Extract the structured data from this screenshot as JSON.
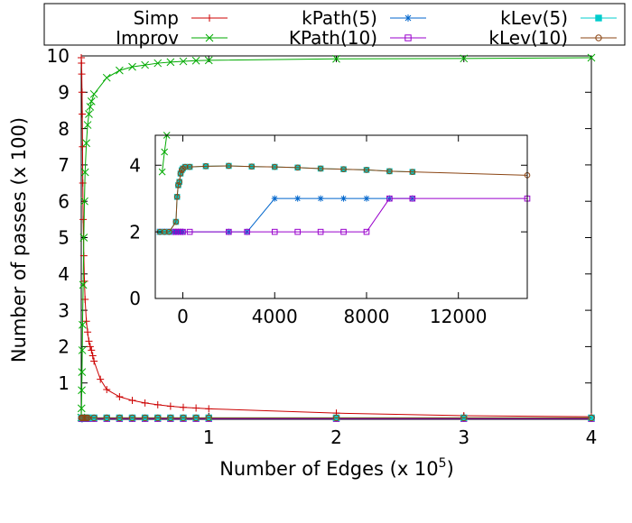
{
  "chart_data": [
    {
      "type": "line",
      "role": "main",
      "xlabel": "Number of Edges (x 10",
      "xlabel_exponent": "5",
      "xlabel_suffix": ")",
      "ylabel": "Number of passes (x 100)",
      "xlim": [
        0,
        4
      ],
      "ylim": [
        0,
        10
      ],
      "x_ticks": [
        {
          "value": 1,
          "label": "1"
        },
        {
          "value": 2,
          "label": "2"
        },
        {
          "value": 3,
          "label": "3"
        },
        {
          "value": 4,
          "label": "4"
        }
      ],
      "y_ticks": [
        {
          "value": 1,
          "label": "1"
        },
        {
          "value": 2,
          "label": "2"
        },
        {
          "value": 3,
          "label": "3"
        },
        {
          "value": 4,
          "label": "4"
        },
        {
          "value": 5,
          "label": "5"
        },
        {
          "value": 6,
          "label": "6"
        },
        {
          "value": 7,
          "label": "7"
        },
        {
          "value": 8,
          "label": "8"
        },
        {
          "value": 9,
          "label": "9"
        },
        {
          "value": 10,
          "label": "10"
        }
      ],
      "grid": false,
      "legend_position": "top (boxed, above plot)",
      "series": [
        {
          "name": "Simp",
          "color": "#cc0000",
          "marker": "plus",
          "x": [
            0.0,
            0.002,
            0.004,
            0.006,
            0.008,
            0.01,
            0.012,
            0.015,
            0.02,
            0.025,
            0.03,
            0.04,
            0.05,
            0.06,
            0.07,
            0.08,
            0.09,
            0.1,
            0.15,
            0.2,
            0.3,
            0.4,
            0.5,
            0.6,
            0.7,
            0.8,
            0.9,
            1.0,
            2.0,
            3.0,
            4.0
          ],
          "y": [
            9.95,
            9.8,
            9.5,
            9.0,
            8.4,
            7.5,
            6.5,
            5.5,
            4.5,
            3.8,
            3.3,
            2.7,
            2.4,
            2.15,
            2.0,
            1.9,
            1.75,
            1.6,
            1.1,
            0.82,
            0.62,
            0.52,
            0.45,
            0.4,
            0.36,
            0.33,
            0.31,
            0.29,
            0.17,
            0.1,
            0.07
          ]
        },
        {
          "name": "Improv",
          "color": "#00aa00",
          "marker": "x",
          "x": [
            0.0,
            0.002,
            0.004,
            0.006,
            0.008,
            0.01,
            0.015,
            0.02,
            0.025,
            0.03,
            0.04,
            0.05,
            0.06,
            0.07,
            0.08,
            0.1,
            0.2,
            0.3,
            0.4,
            0.5,
            0.6,
            0.7,
            0.8,
            0.9,
            1.0,
            2.0,
            3.0,
            4.0
          ],
          "y": [
            0.05,
            0.3,
            0.8,
            1.3,
            1.9,
            2.6,
            3.7,
            5.0,
            6.0,
            6.8,
            7.6,
            8.1,
            8.4,
            8.6,
            8.75,
            8.95,
            9.4,
            9.6,
            9.7,
            9.75,
            9.8,
            9.83,
            9.85,
            9.87,
            9.88,
            9.92,
            9.93,
            9.95
          ]
        },
        {
          "name": "kPath(5)",
          "color": "#0066cc",
          "marker": "asterisk",
          "x": [
            0.002,
            0.005,
            0.01,
            0.02,
            0.03,
            0.04,
            0.05,
            0.1,
            0.2,
            0.3,
            0.4,
            0.5,
            0.6,
            0.7,
            0.8,
            0.9,
            1.0,
            2.0,
            3.0,
            4.0
          ],
          "y": [
            0.02,
            0.02,
            0.02,
            0.03,
            0.03,
            0.03,
            0.03,
            0.03,
            0.03,
            0.03,
            0.03,
            0.03,
            0.03,
            0.03,
            0.03,
            0.03,
            0.03,
            0.03,
            0.03,
            0.03
          ]
        },
        {
          "name": "KPath(10)",
          "color": "#9900cc",
          "marker": "square-open",
          "x": [
            0.002,
            0.005,
            0.01,
            0.02,
            0.03,
            0.04,
            0.05,
            0.1,
            0.2,
            0.3,
            0.4,
            0.5,
            0.6,
            0.7,
            0.8,
            0.9,
            1.0,
            2.0,
            3.0,
            4.0
          ],
          "y": [
            0.02,
            0.02,
            0.02,
            0.02,
            0.02,
            0.02,
            0.02,
            0.02,
            0.02,
            0.02,
            0.02,
            0.02,
            0.02,
            0.02,
            0.02,
            0.02,
            0.02,
            0.02,
            0.02,
            0.02
          ]
        },
        {
          "name": "kLev(5)",
          "color": "#00cccc",
          "marker": "square-filled",
          "x": [
            0.002,
            0.005,
            0.01,
            0.02,
            0.03,
            0.04,
            0.05,
            0.1,
            0.2,
            0.3,
            0.4,
            0.5,
            0.6,
            0.7,
            0.8,
            0.9,
            1.0,
            2.0,
            3.0,
            4.0
          ],
          "y": [
            0.04,
            0.04,
            0.04,
            0.04,
            0.04,
            0.04,
            0.04,
            0.04,
            0.04,
            0.04,
            0.04,
            0.04,
            0.04,
            0.04,
            0.04,
            0.04,
            0.04,
            0.04,
            0.04,
            0.04
          ]
        },
        {
          "name": "kLev(10)",
          "color": "#8b4513",
          "marker": "circle-open",
          "x": [
            0.002,
            0.005,
            0.01,
            0.02,
            0.03,
            0.04,
            0.05,
            0.1,
            0.2,
            0.3,
            0.4,
            0.5,
            0.6,
            0.7,
            0.8,
            0.9,
            1.0,
            2.0,
            3.0,
            4.0
          ],
          "y": [
            0.04,
            0.04,
            0.04,
            0.04,
            0.04,
            0.04,
            0.04,
            0.04,
            0.04,
            0.04,
            0.04,
            0.04,
            0.04,
            0.04,
            0.04,
            0.04,
            0.04,
            0.04,
            0.04,
            0.04
          ]
        }
      ]
    },
    {
      "type": "line",
      "role": "inset",
      "xlabel": "",
      "ylabel": "",
      "xlim": [
        -1200,
        15000
      ],
      "ylim": [
        0,
        4.9
      ],
      "x_ticks": [
        {
          "value": 0,
          "label": "0"
        },
        {
          "value": 4000,
          "label": "4000"
        },
        {
          "value": 8000,
          "label": "8000"
        },
        {
          "value": 12000,
          "label": "12000"
        }
      ],
      "y_ticks": [
        {
          "value": 0,
          "label": "0"
        },
        {
          "value": 2,
          "label": "2"
        },
        {
          "value": 4,
          "label": "4"
        }
      ],
      "grid": false,
      "series": [
        {
          "name": "Simp",
          "color": "#cc0000",
          "marker": "plus",
          "x": [],
          "y": []
        },
        {
          "name": "Improv",
          "color": "#00aa00",
          "marker": "x",
          "x": [
            -900,
            -800,
            -700
          ],
          "y": [
            3.8,
            4.4,
            5.0
          ]
        },
        {
          "name": "kPath(5)",
          "color": "#0066cc",
          "marker": "asterisk",
          "x": [
            -1000,
            -800,
            -600,
            -400,
            -300,
            -200,
            -100,
            0,
            2000,
            2800,
            4000,
            5000,
            6000,
            7000,
            8000,
            9000,
            10000
          ],
          "y": [
            2,
            2,
            2,
            2,
            2,
            2,
            2,
            2,
            2,
            2,
            3,
            3,
            3,
            3,
            3,
            3,
            3
          ]
        },
        {
          "name": "KPath(10)",
          "color": "#9900cc",
          "marker": "square-open",
          "x": [
            -1000,
            -800,
            -600,
            -400,
            -300,
            -200,
            -100,
            0,
            300,
            2000,
            2800,
            4000,
            5000,
            6000,
            7000,
            8000,
            9000,
            10000,
            15000
          ],
          "y": [
            2,
            2,
            2,
            2,
            2,
            2,
            2,
            2,
            2,
            2,
            2,
            2,
            2,
            2,
            2,
            2,
            3,
            3,
            3
          ]
        },
        {
          "name": "kLev(5)",
          "color": "#00cccc",
          "marker": "square-filled",
          "x": [
            -1000,
            -800,
            -600,
            -300,
            -250,
            -200,
            -150,
            -100,
            -50,
            0,
            100,
            300,
            1000,
            2000,
            3000,
            4000,
            5000,
            6000,
            7000,
            8000,
            9000,
            10000
          ],
          "y": [
            2,
            2,
            2,
            2.3,
            3.05,
            3.4,
            3.5,
            3.75,
            3.85,
            3.9,
            3.95,
            3.95,
            3.97,
            3.98,
            3.96,
            3.95,
            3.93,
            3.9,
            3.88,
            3.86,
            3.82,
            3.8
          ]
        },
        {
          "name": "kLev(10)",
          "color": "#8b4513",
          "marker": "circle-open",
          "x": [
            -1000,
            -800,
            -600,
            -300,
            -250,
            -200,
            -150,
            -100,
            -50,
            0,
            100,
            300,
            1000,
            2000,
            3000,
            4000,
            5000,
            6000,
            7000,
            8000,
            9000,
            10000,
            15000
          ],
          "y": [
            2,
            2,
            2,
            2.3,
            3.05,
            3.4,
            3.5,
            3.75,
            3.85,
            3.9,
            3.95,
            3.95,
            3.97,
            3.98,
            3.96,
            3.95,
            3.93,
            3.9,
            3.88,
            3.86,
            3.82,
            3.8,
            3.7
          ]
        }
      ]
    }
  ]
}
